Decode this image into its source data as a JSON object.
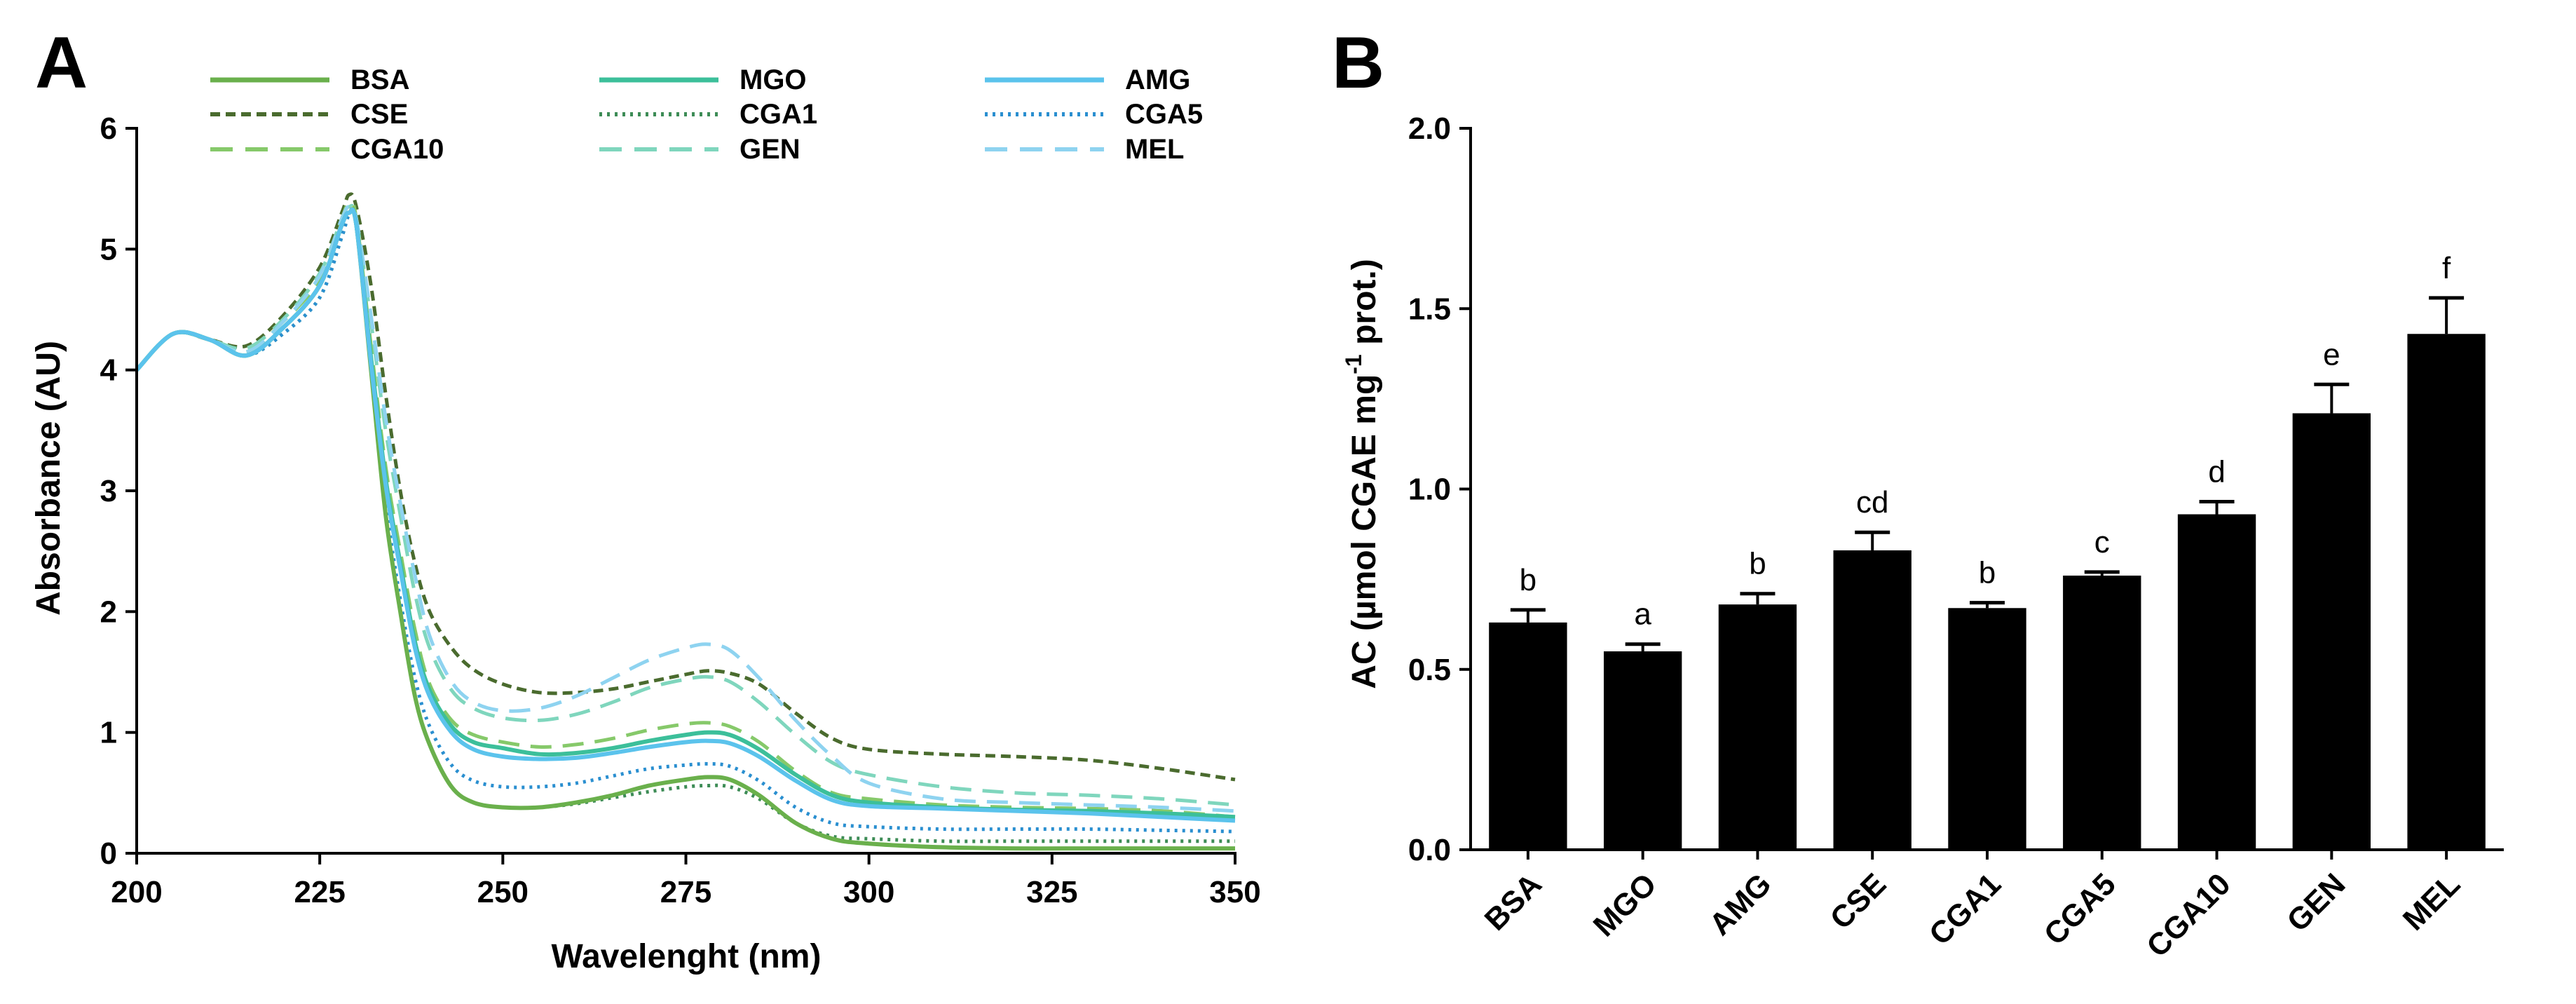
{
  "panels": {
    "a_label": "A",
    "b_label": "B"
  },
  "chart_data": [
    {
      "type": "line",
      "title": "",
      "xlabel": "Wavelenght (nm)",
      "ylabel": "Absorbance (AU)",
      "xlim": [
        200,
        350
      ],
      "ylim": [
        0,
        6
      ],
      "xticks": [
        "200",
        "225",
        "250",
        "275",
        "300",
        "325",
        "350"
      ],
      "yticks": [
        "0",
        "1",
        "2",
        "3",
        "4",
        "5",
        "6"
      ],
      "legend_position": "top",
      "series": [
        {
          "name": "BSA",
          "color": "#6ab04c",
          "style": "solid",
          "x": [
            200,
            205,
            210,
            215,
            220,
            225,
            228,
            229,
            230,
            232,
            234,
            236,
            238,
            240,
            243,
            246,
            250,
            255,
            260,
            265,
            270,
            275,
            278,
            281,
            285,
            290,
            295,
            300,
            310,
            320,
            330,
            340,
            350
          ],
          "y": [
            4.0,
            4.3,
            4.25,
            4.12,
            4.35,
            4.7,
            5.2,
            5.3,
            5.2,
            4.0,
            2.8,
            2.0,
            1.3,
            0.9,
            0.55,
            0.42,
            0.38,
            0.38,
            0.42,
            0.48,
            0.56,
            0.61,
            0.63,
            0.61,
            0.48,
            0.25,
            0.12,
            0.08,
            0.05,
            0.04,
            0.04,
            0.04,
            0.04
          ]
        },
        {
          "name": "MGO",
          "color": "#3cbf9a",
          "style": "solid",
          "x": [
            200,
            205,
            210,
            215,
            220,
            225,
            228,
            229,
            230,
            232,
            234,
            236,
            238,
            240,
            243,
            246,
            250,
            255,
            260,
            265,
            270,
            275,
            278,
            281,
            285,
            290,
            295,
            300,
            310,
            320,
            330,
            340,
            350
          ],
          "y": [
            4.0,
            4.3,
            4.25,
            4.12,
            4.35,
            4.7,
            5.2,
            5.3,
            5.2,
            4.1,
            3.1,
            2.4,
            1.75,
            1.35,
            1.05,
            0.92,
            0.87,
            0.82,
            0.83,
            0.87,
            0.93,
            0.98,
            1.0,
            0.98,
            0.86,
            0.65,
            0.48,
            0.42,
            0.38,
            0.36,
            0.35,
            0.33,
            0.3
          ]
        },
        {
          "name": "AMG",
          "color": "#5bc3ec",
          "style": "solid",
          "x": [
            200,
            205,
            210,
            215,
            220,
            225,
            228,
            229,
            230,
            232,
            234,
            236,
            238,
            240,
            243,
            246,
            250,
            255,
            260,
            265,
            270,
            275,
            278,
            281,
            285,
            290,
            295,
            300,
            310,
            320,
            330,
            340,
            350
          ],
          "y": [
            4.0,
            4.3,
            4.25,
            4.12,
            4.35,
            4.7,
            5.2,
            5.3,
            5.2,
            4.05,
            3.05,
            2.35,
            1.7,
            1.3,
            1.0,
            0.86,
            0.8,
            0.78,
            0.79,
            0.83,
            0.88,
            0.92,
            0.93,
            0.91,
            0.8,
            0.6,
            0.44,
            0.39,
            0.37,
            0.35,
            0.33,
            0.3,
            0.27
          ]
        },
        {
          "name": "CSE",
          "color": "#4a6b2e",
          "style": "dashed-dark",
          "x": [
            200,
            205,
            210,
            215,
            220,
            225,
            228,
            229,
            230,
            232,
            234,
            236,
            238,
            240,
            243,
            246,
            250,
            255,
            260,
            265,
            270,
            275,
            278,
            281,
            285,
            290,
            295,
            300,
            310,
            320,
            330,
            340,
            350
          ],
          "y": [
            4.0,
            4.3,
            4.25,
            4.2,
            4.45,
            4.85,
            5.3,
            5.45,
            5.35,
            4.7,
            3.8,
            3.0,
            2.4,
            2.0,
            1.7,
            1.52,
            1.4,
            1.33,
            1.33,
            1.36,
            1.42,
            1.48,
            1.51,
            1.49,
            1.4,
            1.16,
            0.95,
            0.86,
            0.82,
            0.8,
            0.77,
            0.7,
            0.61
          ]
        },
        {
          "name": "CGA1",
          "color": "#3d8c56",
          "style": "dotted",
          "x": [
            200,
            205,
            210,
            215,
            220,
            225,
            228,
            229,
            230,
            232,
            234,
            236,
            238,
            240,
            243,
            246,
            250,
            255,
            260,
            265,
            270,
            275,
            278,
            281,
            285,
            290,
            295,
            300,
            310,
            320,
            330,
            340,
            350
          ],
          "y": [
            4.0,
            4.3,
            4.25,
            4.12,
            4.3,
            4.6,
            5.1,
            5.28,
            5.2,
            4.0,
            2.8,
            2.0,
            1.3,
            0.9,
            0.55,
            0.42,
            0.38,
            0.38,
            0.41,
            0.46,
            0.51,
            0.55,
            0.56,
            0.55,
            0.45,
            0.25,
            0.14,
            0.12,
            0.1,
            0.1,
            0.1,
            0.1,
            0.1
          ]
        },
        {
          "name": "CGA5",
          "color": "#2a8fd0",
          "style": "dotted",
          "x": [
            200,
            205,
            210,
            215,
            220,
            225,
            228,
            229,
            230,
            232,
            234,
            236,
            238,
            240,
            243,
            246,
            250,
            255,
            260,
            265,
            270,
            275,
            278,
            281,
            285,
            290,
            295,
            300,
            310,
            320,
            330,
            340,
            350
          ],
          "y": [
            4.0,
            4.3,
            4.25,
            4.12,
            4.3,
            4.6,
            5.1,
            5.28,
            5.2,
            4.0,
            2.9,
            2.1,
            1.45,
            1.05,
            0.73,
            0.6,
            0.55,
            0.55,
            0.58,
            0.64,
            0.7,
            0.73,
            0.74,
            0.72,
            0.6,
            0.38,
            0.25,
            0.22,
            0.2,
            0.2,
            0.2,
            0.19,
            0.18
          ]
        },
        {
          "name": "CGA10",
          "color": "#86c96a",
          "style": "dashed",
          "x": [
            200,
            205,
            210,
            215,
            220,
            225,
            228,
            229,
            230,
            232,
            234,
            236,
            238,
            240,
            243,
            246,
            250,
            255,
            260,
            265,
            270,
            275,
            278,
            281,
            285,
            290,
            295,
            300,
            310,
            320,
            330,
            340,
            350
          ],
          "y": [
            4.0,
            4.3,
            4.25,
            4.15,
            4.4,
            4.75,
            5.25,
            5.38,
            5.25,
            4.2,
            3.2,
            2.5,
            1.85,
            1.4,
            1.1,
            0.98,
            0.92,
            0.88,
            0.9,
            0.95,
            1.02,
            1.07,
            1.08,
            1.05,
            0.92,
            0.68,
            0.5,
            0.45,
            0.4,
            0.38,
            0.37,
            0.35,
            0.3
          ]
        },
        {
          "name": "GEN",
          "color": "#7fd6bd",
          "style": "dashed",
          "x": [
            200,
            205,
            210,
            215,
            220,
            225,
            228,
            229,
            230,
            232,
            234,
            236,
            238,
            240,
            243,
            246,
            250,
            255,
            260,
            265,
            270,
            275,
            278,
            281,
            285,
            290,
            295,
            300,
            310,
            320,
            330,
            340,
            350
          ],
          "y": [
            4.0,
            4.3,
            4.25,
            4.18,
            4.42,
            4.8,
            5.25,
            5.35,
            5.25,
            4.4,
            3.5,
            2.8,
            2.15,
            1.7,
            1.35,
            1.2,
            1.12,
            1.1,
            1.15,
            1.25,
            1.37,
            1.44,
            1.46,
            1.42,
            1.25,
            0.98,
            0.75,
            0.65,
            0.55,
            0.5,
            0.48,
            0.45,
            0.4
          ]
        },
        {
          "name": "MEL",
          "color": "#8ed3f0",
          "style": "dashed",
          "x": [
            200,
            205,
            210,
            215,
            220,
            225,
            228,
            229,
            230,
            232,
            234,
            236,
            238,
            240,
            243,
            246,
            250,
            255,
            260,
            265,
            270,
            275,
            278,
            281,
            285,
            290,
            295,
            300,
            310,
            320,
            330,
            340,
            350
          ],
          "y": [
            4.0,
            4.3,
            4.25,
            4.15,
            4.4,
            4.78,
            5.25,
            5.35,
            5.25,
            4.45,
            3.6,
            2.9,
            2.3,
            1.8,
            1.42,
            1.25,
            1.18,
            1.2,
            1.3,
            1.45,
            1.6,
            1.7,
            1.73,
            1.68,
            1.45,
            1.1,
            0.8,
            0.58,
            0.45,
            0.42,
            0.4,
            0.38,
            0.35
          ]
        }
      ]
    },
    {
      "type": "bar",
      "title": "",
      "xlabel": "",
      "ylabel_parts": {
        "before": "AC (µmol CGAE mg",
        "sup": "-1",
        "after": " prot.)"
      },
      "categories": [
        "BSA",
        "MGO",
        "AMG",
        "CSE",
        "CGA1",
        "CGA5",
        "CGA10",
        "GEN",
        "MEL"
      ],
      "values": [
        0.63,
        0.55,
        0.68,
        0.83,
        0.67,
        0.76,
        0.93,
        1.21,
        1.43
      ],
      "errors": [
        0.035,
        0.02,
        0.03,
        0.05,
        0.015,
        0.01,
        0.035,
        0.08,
        0.1
      ],
      "letters": [
        "b",
        "a",
        "b",
        "cd",
        "b",
        "c",
        "d",
        "e",
        "f"
      ],
      "ylim": [
        0.0,
        2.0
      ],
      "yticks": [
        "0.0",
        "0.5",
        "1.0",
        "1.5",
        "2.0"
      ],
      "bar_color": "#000000"
    }
  ]
}
